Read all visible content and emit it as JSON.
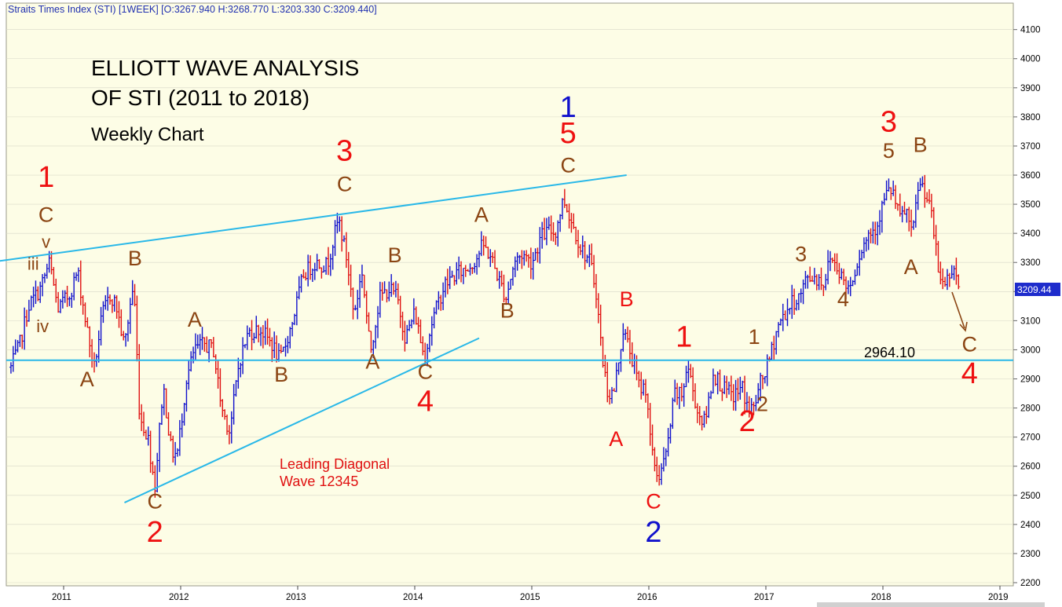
{
  "header": {
    "text": "Straits Times Index (STI) [1WEEK] [O:3267.940 H:3268.770 L:3203.330 C:3209.440]"
  },
  "title": {
    "line1": "ELLIOTT WAVE ANALYSIS",
    "line2": "OF STI (2011 to 2018)",
    "subtitle": "Weekly Chart"
  },
  "colors": {
    "background": "#FDFDE6",
    "up_bar": "#1010CC",
    "down_bar": "#E01010",
    "trendline": "#29B8E8",
    "grid": "#D8D8C8",
    "label_red": "#EE1111",
    "label_brown": "#8B4513",
    "label_blue": "#1010CC",
    "price_box": "#1E2CCC"
  },
  "chart_data": {
    "type": "candlestick",
    "title": "ELLIOTT WAVE ANALYSIS OF STI (2011 to 2018)",
    "subtitle": "Weekly Chart",
    "y_ticks": [
      2200,
      2300,
      2400,
      2500,
      2600,
      2700,
      2800,
      2900,
      3000,
      3100,
      3200,
      3300,
      3400,
      3500,
      3600,
      3700,
      3800,
      3900,
      4000,
      4100
    ],
    "x_ticks": [
      "2011",
      "2012",
      "2013",
      "2014",
      "2015",
      "2016",
      "2017",
      "2018",
      "2019"
    ],
    "ylim": [
      2200,
      4200
    ],
    "last_price": "3209.44",
    "support_level": "2964.10",
    "price_anchors": [
      {
        "t": 2010.55,
        "v": 2940
      },
      {
        "t": 2010.62,
        "v": 3010
      },
      {
        "t": 2010.7,
        "v": 3150
      },
      {
        "t": 2010.8,
        "v": 3210
      },
      {
        "t": 2010.88,
        "v": 3300
      },
      {
        "t": 2010.95,
        "v": 3140
      },
      {
        "t": 2011.05,
        "v": 3190
      },
      {
        "t": 2011.12,
        "v": 3270
      },
      {
        "t": 2011.2,
        "v": 3070
      },
      {
        "t": 2011.26,
        "v": 2935
      },
      {
        "t": 2011.33,
        "v": 3120
      },
      {
        "t": 2011.4,
        "v": 3190
      },
      {
        "t": 2011.45,
        "v": 3150
      },
      {
        "t": 2011.52,
        "v": 3010
      },
      {
        "t": 2011.58,
        "v": 3190
      },
      {
        "t": 2011.6,
        "v": 3220
      },
      {
        "t": 2011.65,
        "v": 2770
      },
      {
        "t": 2011.72,
        "v": 2700
      },
      {
        "t": 2011.78,
        "v": 2530
      },
      {
        "t": 2011.85,
        "v": 2880
      },
      {
        "t": 2011.92,
        "v": 2650
      },
      {
        "t": 2011.97,
        "v": 2640
      },
      {
        "t": 2012.05,
        "v": 2900
      },
      {
        "t": 2012.12,
        "v": 3000
      },
      {
        "t": 2012.2,
        "v": 3020
      },
      {
        "t": 2012.28,
        "v": 3000
      },
      {
        "t": 2012.35,
        "v": 2800
      },
      {
        "t": 2012.42,
        "v": 2720
      },
      {
        "t": 2012.5,
        "v": 2960
      },
      {
        "t": 2012.58,
        "v": 3060
      },
      {
        "t": 2012.68,
        "v": 3070
      },
      {
        "t": 2012.78,
        "v": 3020
      },
      {
        "t": 2012.85,
        "v": 2960
      },
      {
        "t": 2012.95,
        "v": 3090
      },
      {
        "t": 2013.05,
        "v": 3260
      },
      {
        "t": 2013.15,
        "v": 3300
      },
      {
        "t": 2013.25,
        "v": 3290
      },
      {
        "t": 2013.35,
        "v": 3450
      },
      {
        "t": 2013.42,
        "v": 3310
      },
      {
        "t": 2013.48,
        "v": 3120
      },
      {
        "t": 2013.55,
        "v": 3270
      },
      {
        "t": 2013.62,
        "v": 2990
      },
      {
        "t": 2013.7,
        "v": 3180
      },
      {
        "t": 2013.78,
        "v": 3210
      },
      {
        "t": 2013.85,
        "v": 3180
      },
      {
        "t": 2013.92,
        "v": 3040
      },
      {
        "t": 2014.0,
        "v": 3130
      },
      {
        "t": 2014.08,
        "v": 2975
      },
      {
        "t": 2014.15,
        "v": 3100
      },
      {
        "t": 2014.25,
        "v": 3220
      },
      {
        "t": 2014.35,
        "v": 3260
      },
      {
        "t": 2014.45,
        "v": 3280
      },
      {
        "t": 2014.52,
        "v": 3310
      },
      {
        "t": 2014.58,
        "v": 3360
      },
      {
        "t": 2014.65,
        "v": 3320
      },
      {
        "t": 2014.72,
        "v": 3240
      },
      {
        "t": 2014.78,
        "v": 3180
      },
      {
        "t": 2014.85,
        "v": 3300
      },
      {
        "t": 2014.92,
        "v": 3330
      },
      {
        "t": 2015.0,
        "v": 3300
      },
      {
        "t": 2015.08,
        "v": 3390
      },
      {
        "t": 2015.15,
        "v": 3410
      },
      {
        "t": 2015.2,
        "v": 3400
      },
      {
        "t": 2015.27,
        "v": 3520
      },
      {
        "t": 2015.35,
        "v": 3430
      },
      {
        "t": 2015.42,
        "v": 3350
      },
      {
        "t": 2015.5,
        "v": 3300
      },
      {
        "t": 2015.55,
        "v": 3200
      },
      {
        "t": 2015.6,
        "v": 2980
      },
      {
        "t": 2015.65,
        "v": 2850
      },
      {
        "t": 2015.7,
        "v": 2850
      },
      {
        "t": 2015.78,
        "v": 3070
      },
      {
        "t": 2015.85,
        "v": 2980
      },
      {
        "t": 2015.92,
        "v": 2870
      },
      {
        "t": 2015.98,
        "v": 2870
      },
      {
        "t": 2016.02,
        "v": 2650
      },
      {
        "t": 2016.08,
        "v": 2560
      },
      {
        "t": 2016.15,
        "v": 2640
      },
      {
        "t": 2016.22,
        "v": 2850
      },
      {
        "t": 2016.28,
        "v": 2840
      },
      {
        "t": 2016.33,
        "v": 2950
      },
      {
        "t": 2016.42,
        "v": 2780
      },
      {
        "t": 2016.48,
        "v": 2750
      },
      {
        "t": 2016.55,
        "v": 2920
      },
      {
        "t": 2016.65,
        "v": 2860
      },
      {
        "t": 2016.72,
        "v": 2840
      },
      {
        "t": 2016.8,
        "v": 2870
      },
      {
        "t": 2016.85,
        "v": 2790
      },
      {
        "t": 2016.9,
        "v": 2800
      },
      {
        "t": 2016.95,
        "v": 2880
      },
      {
        "t": 2017.02,
        "v": 2950
      },
      {
        "t": 2017.1,
        "v": 3080
      },
      {
        "t": 2017.2,
        "v": 3150
      },
      {
        "t": 2017.3,
        "v": 3190
      },
      {
        "t": 2017.35,
        "v": 3250
      },
      {
        "t": 2017.42,
        "v": 3250
      },
      {
        "t": 2017.5,
        "v": 3230
      },
      {
        "t": 2017.55,
        "v": 3320
      },
      {
        "t": 2017.62,
        "v": 3280
      },
      {
        "t": 2017.68,
        "v": 3220
      },
      {
        "t": 2017.72,
        "v": 3220
      },
      {
        "t": 2017.8,
        "v": 3330
      },
      {
        "t": 2017.88,
        "v": 3400
      },
      {
        "t": 2017.95,
        "v": 3430
      },
      {
        "t": 2018.02,
        "v": 3530
      },
      {
        "t": 2018.08,
        "v": 3550
      },
      {
        "t": 2018.14,
        "v": 3450
      },
      {
        "t": 2018.2,
        "v": 3480
      },
      {
        "t": 2018.25,
        "v": 3380
      },
      {
        "t": 2018.3,
        "v": 3560
      },
      {
        "t": 2018.35,
        "v": 3560
      },
      {
        "t": 2018.42,
        "v": 3450
      },
      {
        "t": 2018.48,
        "v": 3250
      },
      {
        "t": 2018.52,
        "v": 3230
      },
      {
        "t": 2018.56,
        "v": 3250
      },
      {
        "t": 2018.6,
        "v": 3300
      },
      {
        "t": 2018.63,
        "v": 3240
      },
      {
        "t": 2018.66,
        "v": 3209
      }
    ]
  },
  "wave_labels": [
    {
      "text": "1",
      "t": 2010.85,
      "p": 3560,
      "color": "red",
      "size": "l"
    },
    {
      "text": "C",
      "t": 2010.85,
      "p": 3440,
      "color": "brown",
      "size": "m"
    },
    {
      "text": "v",
      "t": 2010.85,
      "p": 3350,
      "color": "brown",
      "size": "s"
    },
    {
      "text": "iii",
      "t": 2010.74,
      "p": 3275,
      "color": "brown",
      "size": "s"
    },
    {
      "text": "iv",
      "t": 2010.82,
      "p": 3060,
      "color": "brown",
      "size": "s"
    },
    {
      "text": "A",
      "t": 2011.2,
      "p": 2875,
      "color": "brown",
      "size": "m"
    },
    {
      "text": "B",
      "t": 2011.61,
      "p": 3290,
      "color": "brown",
      "size": "m"
    },
    {
      "text": "C",
      "t": 2011.78,
      "p": 2455,
      "color": "brown",
      "size": "m"
    },
    {
      "text": "2",
      "t": 2011.78,
      "p": 2340,
      "color": "red",
      "size": "l"
    },
    {
      "text": "A",
      "t": 2012.12,
      "p": 3080,
      "color": "brown",
      "size": "m"
    },
    {
      "text": "B",
      "t": 2012.86,
      "p": 2890,
      "color": "brown",
      "size": "m"
    },
    {
      "text": "3",
      "t": 2013.4,
      "p": 3650,
      "color": "red",
      "size": "l"
    },
    {
      "text": "C",
      "t": 2013.4,
      "p": 3545,
      "color": "brown",
      "size": "m"
    },
    {
      "text": "A",
      "t": 2013.64,
      "p": 2935,
      "color": "brown",
      "size": "m"
    },
    {
      "text": "B",
      "t": 2013.83,
      "p": 3300,
      "color": "brown",
      "size": "m"
    },
    {
      "text": "C",
      "t": 2014.09,
      "p": 2900,
      "color": "brown",
      "size": "m"
    },
    {
      "text": "4",
      "t": 2014.09,
      "p": 2790,
      "color": "red",
      "size": "l"
    },
    {
      "text": "A",
      "t": 2014.57,
      "p": 3440,
      "color": "brown",
      "size": "m"
    },
    {
      "text": "B",
      "t": 2014.79,
      "p": 3110,
      "color": "brown",
      "size": "m"
    },
    {
      "text": "1",
      "t": 2015.31,
      "p": 3800,
      "color": "blue",
      "size": "l"
    },
    {
      "text": "5",
      "t": 2015.31,
      "p": 3710,
      "color": "red",
      "size": "l"
    },
    {
      "text": "C",
      "t": 2015.31,
      "p": 3610,
      "color": "brown",
      "size": "m"
    },
    {
      "text": "B",
      "t": 2015.81,
      "p": 3150,
      "color": "red",
      "size": "m"
    },
    {
      "text": "A",
      "t": 2015.72,
      "p": 2670,
      "color": "red",
      "size": "m"
    },
    {
      "text": "1",
      "t": 2016.3,
      "p": 3010,
      "color": "red",
      "size": "l"
    },
    {
      "text": "C",
      "t": 2016.04,
      "p": 2455,
      "color": "red",
      "size": "m"
    },
    {
      "text": "2",
      "t": 2016.04,
      "p": 2340,
      "color": "blue",
      "size": "l"
    },
    {
      "text": "2",
      "t": 2016.84,
      "p": 2720,
      "color": "red",
      "size": "l"
    },
    {
      "text": "1",
      "t": 2016.9,
      "p": 3020,
      "color": "brown",
      "size": "m"
    },
    {
      "text": "2",
      "t": 2016.97,
      "p": 2790,
      "color": "brown",
      "size": "m"
    },
    {
      "text": "3",
      "t": 2017.3,
      "p": 3305,
      "color": "brown",
      "size": "m"
    },
    {
      "text": "4",
      "t": 2017.66,
      "p": 3150,
      "color": "brown",
      "size": "m"
    },
    {
      "text": "3",
      "t": 2018.05,
      "p": 3750,
      "color": "red",
      "size": "l"
    },
    {
      "text": "5",
      "t": 2018.05,
      "p": 3660,
      "color": "brown",
      "size": "m"
    },
    {
      "text": "B",
      "t": 2018.32,
      "p": 3680,
      "color": "brown",
      "size": "m"
    },
    {
      "text": "A",
      "t": 2018.24,
      "p": 3260,
      "color": "brown",
      "size": "m"
    },
    {
      "text": "C",
      "t": 2018.74,
      "p": 2995,
      "color": "brown",
      "size": "m"
    },
    {
      "text": "4",
      "t": 2018.74,
      "p": 2885,
      "color": "red",
      "size": "l"
    }
  ],
  "annotation": {
    "line1": "Leading Diagonal",
    "line2": "Wave 12345"
  },
  "support_label": "2964.10",
  "price_box_label": "3209.44"
}
